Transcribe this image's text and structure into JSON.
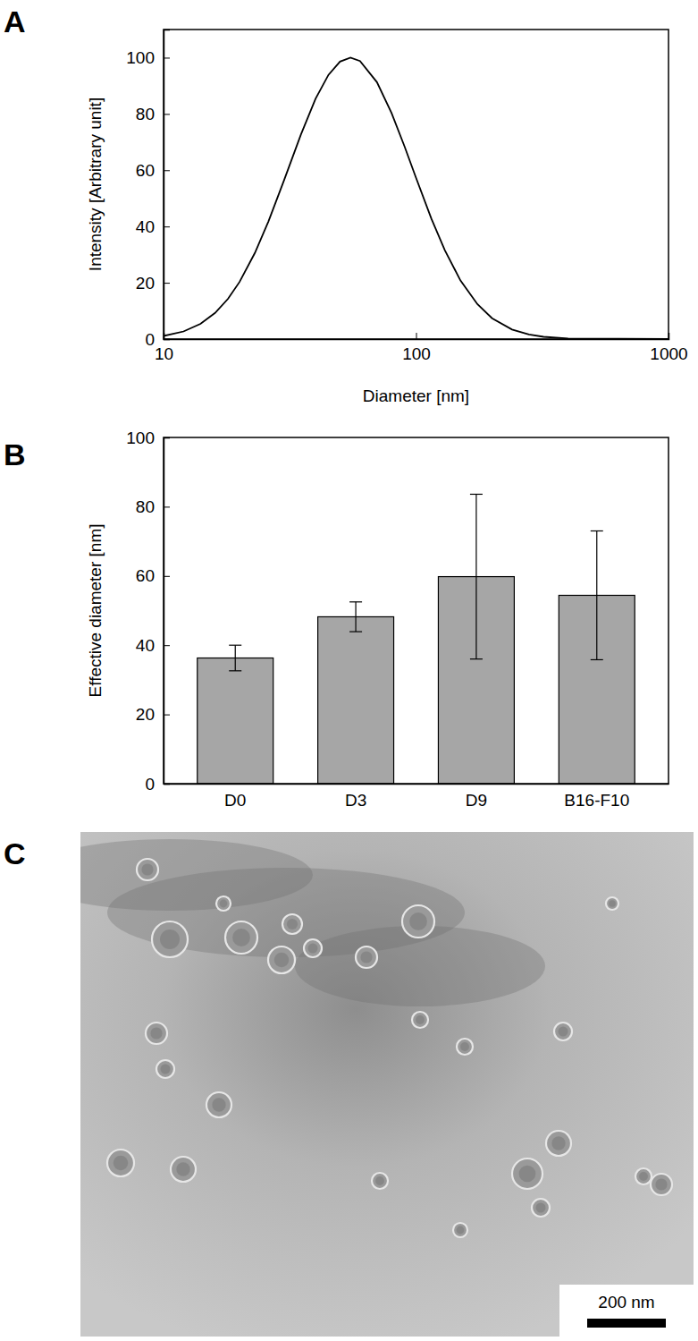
{
  "chart_data": [
    {
      "type": "line",
      "panel_label": "A",
      "x_label": "Diameter [nm]",
      "y_label": "Intensity [Arbitrary unit]",
      "log": "x",
      "color": "#000000",
      "x": [
        10,
        12,
        14,
        16,
        18,
        20,
        23,
        26,
        30,
        35,
        40,
        45,
        50,
        55,
        60,
        70,
        80,
        90,
        100,
        115,
        130,
        150,
        175,
        200,
        240,
        280,
        320,
        400,
        1000
      ],
      "values": [
        1.1,
        2.7,
        5.4,
        9.3,
        14.3,
        20.3,
        30.6,
        41.7,
        56.4,
        72.7,
        85.4,
        93.9,
        98.6,
        100,
        98.8,
        91.3,
        80.3,
        68.5,
        57.3,
        42.8,
        31.6,
        20.8,
        12.4,
        7.4,
        3.4,
        1.6,
        0.8,
        0.2,
        0
      ],
      "xlim": [
        10,
        1000
      ],
      "xticks": [
        10,
        100,
        1000
      ],
      "ylim": [
        0,
        110
      ],
      "yticks": [
        0,
        20,
        40,
        60,
        80,
        100
      ]
    },
    {
      "type": "bar",
      "panel_label": "B",
      "y_label": "Effective diameter [nm]",
      "color": "#a6a6a6",
      "categories": [
        "D0",
        "D3",
        "D9",
        "B16-F10"
      ],
      "values": [
        36.3,
        48.2,
        59.8,
        54.4
      ],
      "errors": [
        3.7,
        4.3,
        23.8,
        18.6
      ],
      "ylim": [
        0,
        100
      ],
      "yticks": [
        0,
        20,
        40,
        60,
        80,
        100
      ]
    },
    {
      "type": "image",
      "panel_label": "C",
      "scale_bar_label": "200 nm"
    }
  ]
}
